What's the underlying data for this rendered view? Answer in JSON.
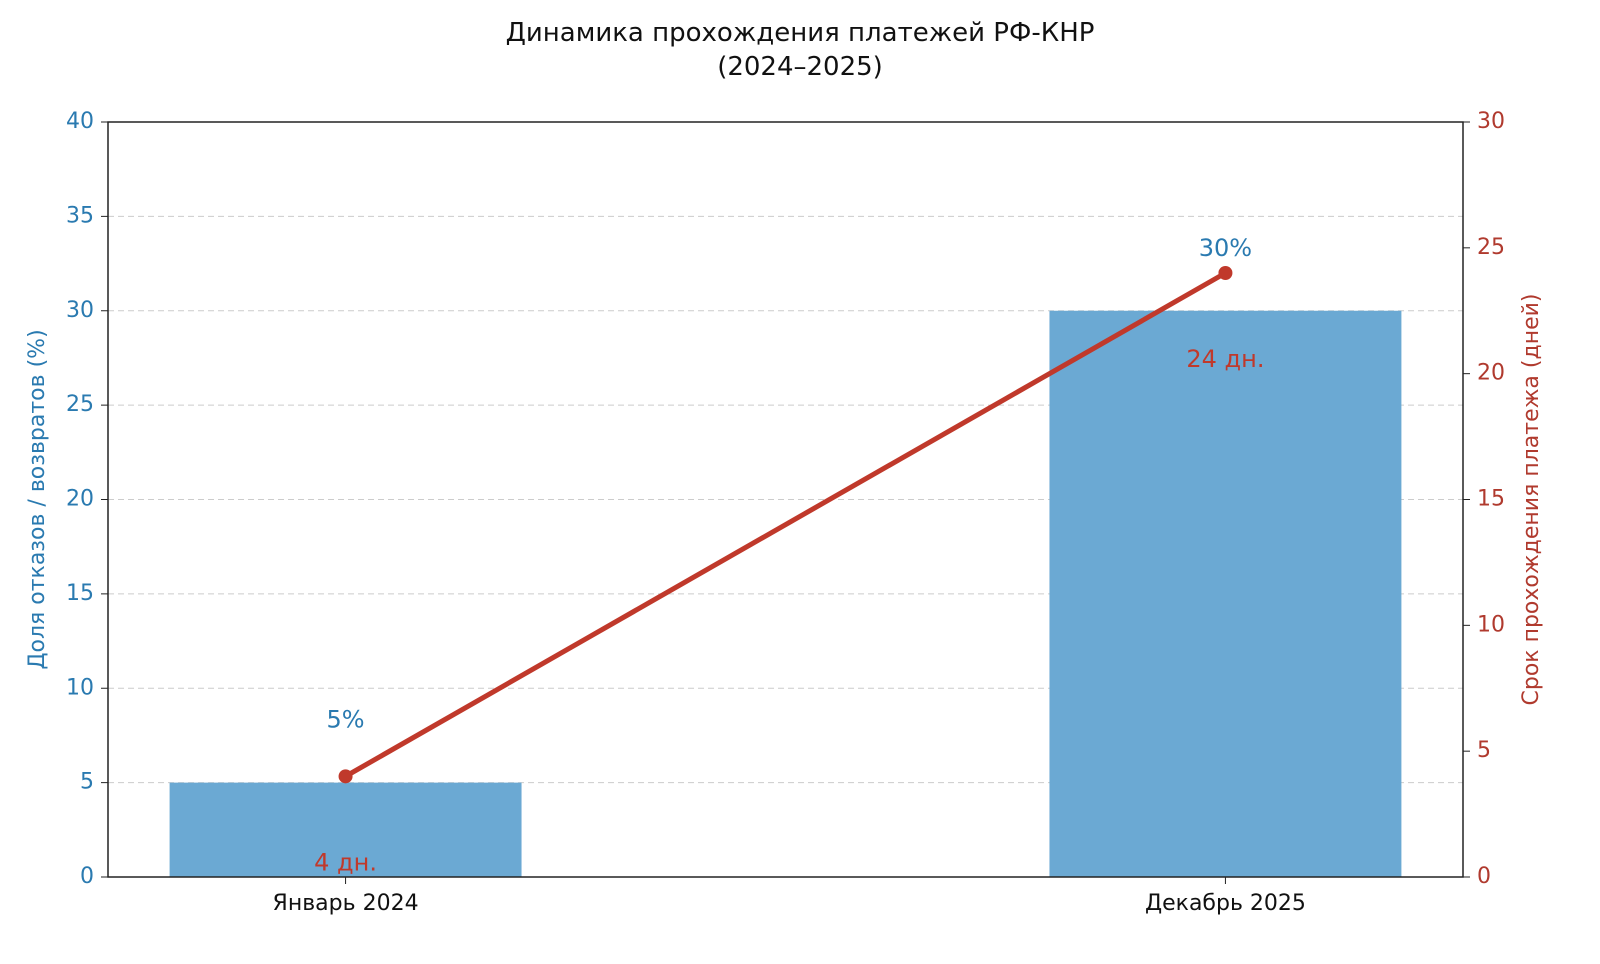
{
  "chart_data": {
    "type": "combo",
    "title": "Динамика прохождения платежей РФ-КНР\n(2024–2025)",
    "categories": [
      "Январь 2024",
      "Декабрь 2025"
    ],
    "ylabel": "Доля отказов / возвратов (%)",
    "y2label": "Срок прохождения платежа (дней)",
    "ylim": [
      0,
      40
    ],
    "yticks": [
      0,
      5,
      10,
      15,
      20,
      25,
      30,
      35,
      40
    ],
    "y2lim": [
      0,
      30
    ],
    "y2ticks": [
      0,
      5,
      10,
      15,
      20,
      25,
      30
    ],
    "grid": true,
    "ycolor": "#2a7ab0",
    "y2color": "#b03a2e",
    "series": [
      {
        "type": "bar",
        "color": "#6ba9d3",
        "values": [
          5,
          30
        ],
        "value_labels": [
          "5%",
          "30%"
        ]
      },
      {
        "type": "line",
        "axis": "y2",
        "color": "#c0392b",
        "values": [
          4,
          24
        ],
        "value_labels": [
          "4 дн.",
          "24 дн."
        ]
      }
    ]
  }
}
